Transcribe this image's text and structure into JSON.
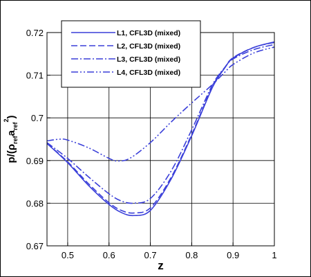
{
  "chart_data": {
    "type": "line",
    "title": "",
    "xlabel": "z",
    "ylabel_parts": {
      "p": "p/(ρ",
      "ref1": "ref",
      "a": "a",
      "ref2": "ref",
      "sup": "2",
      "close": ")"
    },
    "xlim": [
      0.45,
      1.0
    ],
    "ylim": [
      0.67,
      0.72
    ],
    "xticks": [
      0.5,
      0.6,
      0.7,
      0.8,
      0.9,
      1.0
    ],
    "xtick_labels": [
      "0.5",
      "0.6",
      "0.7",
      "0.8",
      "0.9",
      "1"
    ],
    "yticks": [
      0.67,
      0.68,
      0.69,
      0.7,
      0.71,
      0.72
    ],
    "ytick_labels": [
      "0.67",
      "0.68",
      "0.69",
      "0.7",
      "0.71",
      "0.72"
    ],
    "grid": true,
    "legend_position": "top-left",
    "color": "#3a3fd9",
    "series": [
      {
        "name": "L1, CFL3D (mixed)",
        "dash": "solid",
        "x": [
          0.45,
          0.5,
          0.55,
          0.6,
          0.63,
          0.66,
          0.7,
          0.75,
          0.8,
          0.85,
          0.88,
          0.9,
          0.95,
          1.0
        ],
        "y": [
          0.694,
          0.6895,
          0.6842,
          0.6797,
          0.6778,
          0.6771,
          0.6783,
          0.6856,
          0.6958,
          0.7071,
          0.7117,
          0.714,
          0.7165,
          0.7178
        ]
      },
      {
        "name": "L2, CFL3D (mixed)",
        "dash": "dashed",
        "x": [
          0.45,
          0.5,
          0.55,
          0.6,
          0.63,
          0.66,
          0.7,
          0.75,
          0.8,
          0.85,
          0.88,
          0.9,
          0.95,
          1.0
        ],
        "y": [
          0.694,
          0.6897,
          0.6846,
          0.6801,
          0.6783,
          0.6777,
          0.6789,
          0.686,
          0.6961,
          0.7073,
          0.7118,
          0.7141,
          0.7165,
          0.7177
        ]
      },
      {
        "name": "L3, CFL3D (mixed)",
        "dash": "dashdot",
        "x": [
          0.45,
          0.5,
          0.55,
          0.6,
          0.63,
          0.66,
          0.7,
          0.75,
          0.8,
          0.85,
          0.88,
          0.9,
          0.95,
          1.0
        ],
        "y": [
          0.6942,
          0.6905,
          0.6862,
          0.6822,
          0.6805,
          0.68,
          0.6811,
          0.6875,
          0.6972,
          0.7077,
          0.7118,
          0.7138,
          0.716,
          0.7172
        ]
      },
      {
        "name": "L4, CFL3D (mixed)",
        "dash": "dashdotdot",
        "x": [
          0.45,
          0.48,
          0.5,
          0.55,
          0.6,
          0.62,
          0.65,
          0.7,
          0.75,
          0.8,
          0.85,
          0.88,
          0.9,
          0.95,
          1.0
        ],
        "y": [
          0.6946,
          0.695,
          0.6948,
          0.693,
          0.6905,
          0.6899,
          0.6905,
          0.6942,
          0.699,
          0.7035,
          0.7078,
          0.7107,
          0.7125,
          0.7152,
          0.7166
        ]
      }
    ]
  }
}
